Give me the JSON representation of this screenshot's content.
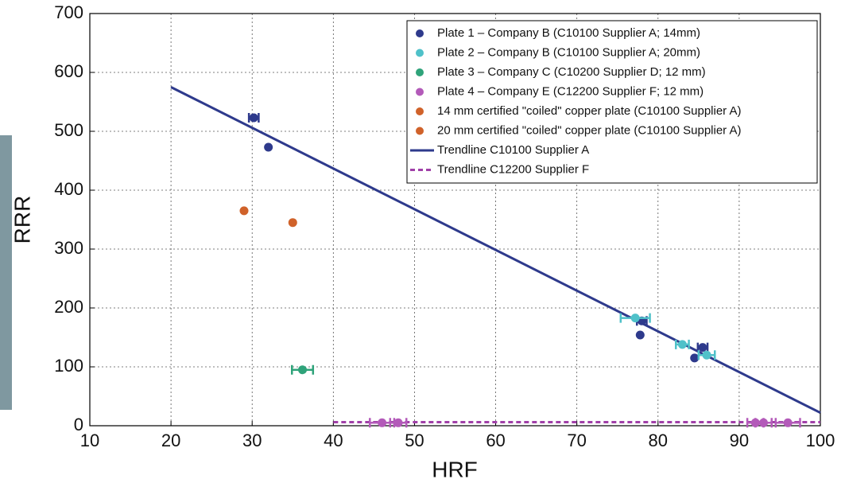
{
  "chart_data": {
    "type": "scatter",
    "x_label": "HRF",
    "y_label": "RRR",
    "xlim": [
      10,
      100
    ],
    "ylim": [
      0,
      700
    ],
    "xticks": [
      10,
      20,
      30,
      40,
      50,
      60,
      70,
      80,
      90,
      100
    ],
    "yticks": [
      0,
      100,
      200,
      300,
      400,
      500,
      600,
      700
    ],
    "grid": true,
    "legend": "upper right",
    "series": [
      {
        "name": "Plate 1 – Company B (C10100 Supplier A; 14mm)",
        "color": "#2e3a8c",
        "x": [
          30.2,
          32,
          78,
          77.8,
          85.5,
          84.5
        ],
        "values": [
          523,
          473,
          178,
          154,
          133,
          115
        ],
        "xerr": [
          0.6,
          null,
          0.6,
          null,
          0.6,
          null
        ]
      },
      {
        "name": "Plate 2 – Company B (C10100 Supplier A; 20mm)",
        "color": "#4fc1c9",
        "x": [
          77.2,
          83,
          86
        ],
        "values": [
          183,
          138,
          120
        ],
        "xerr": [
          1.8,
          0.8,
          1
        ]
      },
      {
        "name": "Plate 3 – Company C (C10200 Supplier D; 12 mm)",
        "color": "#2fa37a",
        "x": [
          36.2
        ],
        "values": [
          95
        ],
        "xerr": [
          1.3
        ]
      },
      {
        "name": "Plate 4 – Company E (C12200 Supplier F; 12 mm)",
        "color": "#b35ab9",
        "x": [
          46,
          48,
          92,
          93,
          96
        ],
        "values": [
          5,
          5,
          5,
          5,
          5
        ],
        "xerr": [
          1.5,
          1,
          1,
          1,
          1.5
        ]
      },
      {
        "name": "14 mm certified \"coiled\" copper plate (C10100 Supplier A)",
        "color": "#d0622a",
        "x": [
          29
        ],
        "values": [
          365
        ],
        "xerr": [
          null
        ]
      },
      {
        "name": "20 mm certified \"coiled\" copper plate (C10100 Supplier A)",
        "color": "#d0622a",
        "x": [
          35
        ],
        "values": [
          345
        ],
        "xerr": [
          null
        ]
      }
    ],
    "trendlines": [
      {
        "name": "Trendline C10100 Supplier A",
        "color": "#2e3a8c",
        "style": "solid",
        "x": [
          20,
          100
        ],
        "values": [
          575,
          22
        ]
      },
      {
        "name": "Trendline C12200 Supplier F",
        "color": "#a040a8",
        "style": "dashed",
        "x": [
          40,
          100
        ],
        "values": [
          6,
          6
        ]
      }
    ]
  }
}
